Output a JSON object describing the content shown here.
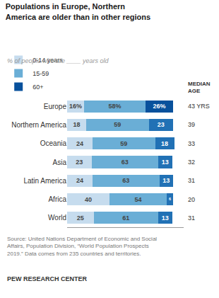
{
  "chart_data": {
    "type": "bar",
    "orientation": "horizontal",
    "stacked": true,
    "title": "Populations in Europe, Northern\nAmerica are older than in other regions",
    "subtitle": "% of people who are ____ years old",
    "categories": [
      "Europe",
      "Northern America",
      "Oceania",
      "Asia",
      "Latin America",
      "Africa",
      "World"
    ],
    "series": [
      {
        "name": "0-14 years",
        "color": "#c6dcee",
        "values": [
          16,
          18,
          24,
          23,
          24,
          40,
          25
        ],
        "value_labels": [
          "16%",
          "18",
          "24",
          "23",
          "24",
          "40",
          "25"
        ]
      },
      {
        "name": "15-59",
        "color": "#6aaed6",
        "values": [
          58,
          59,
          59,
          63,
          63,
          54,
          61
        ],
        "value_labels": [
          "58%",
          "59",
          "59",
          "63",
          "63",
          "54",
          "61"
        ]
      },
      {
        "name": "60+",
        "colors": [
          "#08519c",
          "#2171b5",
          "#2171b5",
          "#2171b5",
          "#2171b5",
          "#2171b5",
          "#2171b5"
        ],
        "values": [
          26,
          23,
          18,
          13,
          13,
          6,
          13
        ],
        "value_labels": [
          "26%",
          "23",
          "18",
          "13",
          "13",
          "6",
          "13"
        ]
      }
    ],
    "xlim": [
      0,
      110
    ],
    "data_labels": true,
    "tick_labels": "y",
    "grid": false,
    "legend": "top",
    "side_labels_title": "MEDIAN\nAGE",
    "side_labels": [
      "43 YRS",
      "39",
      "33",
      "32",
      "31",
      "20",
      "31"
    ],
    "source": "Source: United Nations Department of Economic and Social\nAffairs, Population Division, “World Population Prospects\n2019.” Data comes from 235 countries and territories.",
    "footer": "PEW RESEARCH CENTER"
  }
}
